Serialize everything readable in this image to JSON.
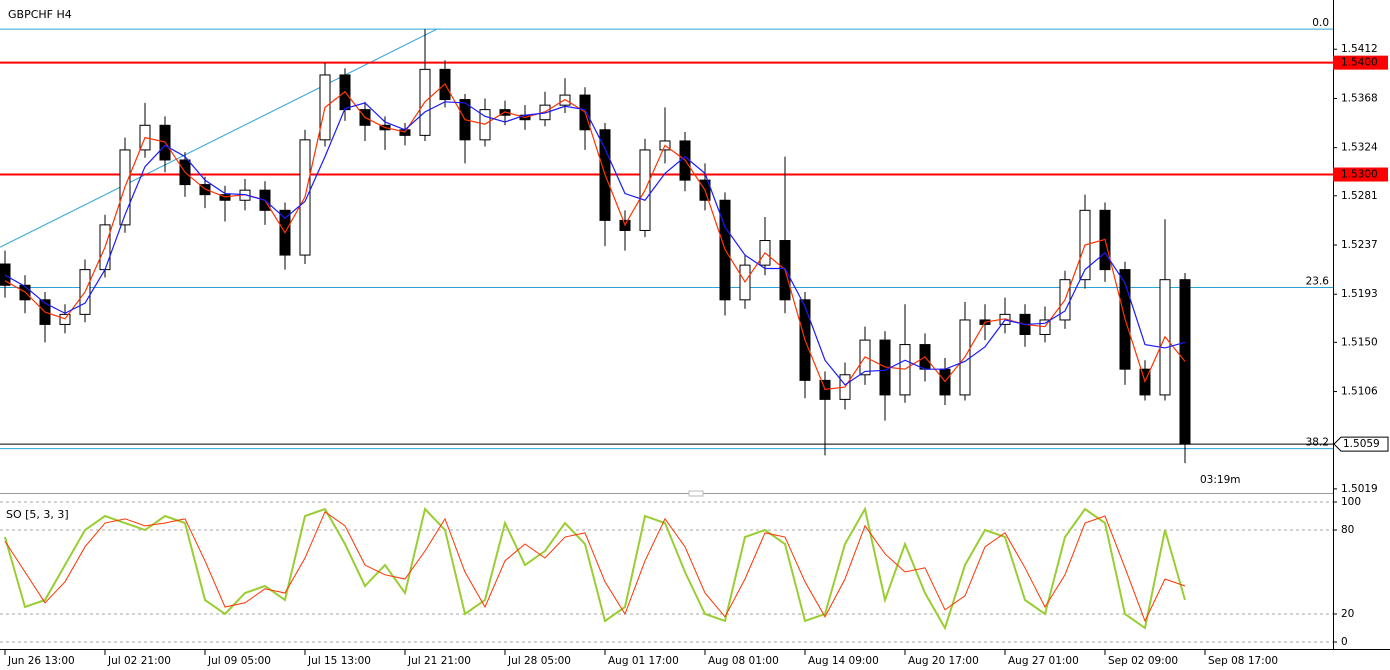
{
  "chart_data": [
    {
      "type": "candlestick",
      "title": "GBPCHF H4",
      "xlim": [
        -0.25,
        66.4
      ],
      "xticks": [
        {
          "value": 0,
          "label": "Jun 26 13:00"
        },
        {
          "value": 5,
          "label": "Jul 02 21:00"
        },
        {
          "value": 10,
          "label": "Jul 09 05:00"
        },
        {
          "value": 15,
          "label": "Jul 15 13:00"
        },
        {
          "value": 20,
          "label": "Jul 21 21:00"
        },
        {
          "value": 25,
          "label": "Jul 28 05:00"
        },
        {
          "value": 30,
          "label": "Aug 01 17:00"
        },
        {
          "value": 35,
          "label": "Aug 08 01:00"
        },
        {
          "value": 40,
          "label": "Aug 14 09:00"
        },
        {
          "value": 45,
          "label": "Aug 20 17:00"
        },
        {
          "value": 50,
          "label": "Aug 27 01:00"
        },
        {
          "value": 55,
          "label": "Sep 02 09:00"
        },
        {
          "value": 60,
          "label": "Sep 08 17:00"
        }
      ],
      "ylim": [
        1.5018,
        1.5456
      ],
      "yticks": [
        1.5412,
        1.5368,
        1.5324,
        1.5281,
        1.5237,
        1.5193,
        {
          "value": 1.515,
          "label": "1.5150"
        },
        1.5106,
        1.5019
      ],
      "up_color": "#ffffff",
      "down_color": "#000000",
      "open": [
        1.522,
        1.5201,
        1.5188,
        1.5166,
        1.5175,
        1.5215,
        1.5255,
        1.5322,
        1.5344,
        1.5313,
        1.5291,
        1.5282,
        1.5277,
        1.5286,
        1.5268,
        1.5228,
        1.5331,
        1.5389,
        1.5358,
        1.5344,
        1.534,
        1.5335,
        1.5394,
        1.5367,
        1.5331,
        1.5358,
        1.5353,
        1.5349,
        1.5362,
        1.5371,
        1.534,
        1.5259,
        1.525,
        1.5322,
        1.533,
        1.5295,
        1.5277,
        1.5188,
        1.5219,
        1.5241,
        1.5188,
        1.5116,
        1.5099,
        1.5121,
        1.5152,
        1.5103,
        1.5148,
        1.5126,
        1.5103,
        1.517,
        1.5166,
        1.5175,
        1.5157,
        1.517,
        1.5206,
        1.5268,
        1.5215,
        1.5126,
        1.5103,
        1.5206
      ],
      "high": [
        1.5232,
        1.521,
        1.5195,
        1.5184,
        1.5224,
        1.5264,
        1.5333,
        1.5364,
        1.5352,
        1.532,
        1.5298,
        1.529,
        1.5296,
        1.5294,
        1.5275,
        1.534,
        1.54,
        1.5395,
        1.5365,
        1.5352,
        1.5346,
        1.543,
        1.5402,
        1.5372,
        1.5368,
        1.5366,
        1.5362,
        1.5374,
        1.5386,
        1.5378,
        1.5346,
        1.5268,
        1.5332,
        1.536,
        1.5338,
        1.531,
        1.5284,
        1.5228,
        1.5262,
        1.5316,
        1.5195,
        1.5124,
        1.5132,
        1.5164,
        1.516,
        1.5184,
        1.5158,
        1.5136,
        1.5186,
        1.5184,
        1.519,
        1.5184,
        1.5182,
        1.5214,
        1.5282,
        1.5275,
        1.5222,
        1.5134,
        1.526,
        1.5212
      ],
      "low": [
        1.519,
        1.5176,
        1.515,
        1.5158,
        1.5168,
        1.5208,
        1.5248,
        1.5315,
        1.5302,
        1.528,
        1.527,
        1.5258,
        1.5268,
        1.5255,
        1.5215,
        1.522,
        1.5325,
        1.5348,
        1.533,
        1.5322,
        1.5326,
        1.533,
        1.536,
        1.531,
        1.5325,
        1.5344,
        1.534,
        1.5343,
        1.5355,
        1.5322,
        1.5236,
        1.5232,
        1.5244,
        1.531,
        1.5285,
        1.5268,
        1.5174,
        1.518,
        1.521,
        1.5176,
        1.51,
        1.5049,
        1.509,
        1.5112,
        1.508,
        1.5096,
        1.5115,
        1.5094,
        1.5098,
        1.5152,
        1.5158,
        1.5146,
        1.515,
        1.5162,
        1.5198,
        1.5204,
        1.5112,
        1.5098,
        1.5098,
        1.5042
      ],
      "close": [
        1.5201,
        1.5188,
        1.5166,
        1.5175,
        1.5215,
        1.5255,
        1.5322,
        1.5344,
        1.5313,
        1.5291,
        1.5282,
        1.5277,
        1.5286,
        1.5268,
        1.5228,
        1.5331,
        1.5389,
        1.5358,
        1.5344,
        1.534,
        1.5335,
        1.5394,
        1.5367,
        1.5331,
        1.5358,
        1.5353,
        1.5349,
        1.5362,
        1.5371,
        1.534,
        1.5259,
        1.525,
        1.5322,
        1.533,
        1.5295,
        1.5277,
        1.5188,
        1.5219,
        1.5241,
        1.5188,
        1.5116,
        1.5099,
        1.5121,
        1.5152,
        1.5103,
        1.5148,
        1.5126,
        1.5103,
        1.517,
        1.5166,
        1.5175,
        1.5157,
        1.517,
        1.5206,
        1.5268,
        1.5215,
        1.5126,
        1.5103,
        1.5206,
        1.5059
      ],
      "series": [
        {
          "color": "#ff3300",
          "values": [
            1.5205,
            1.5195,
            1.5177,
            1.5171,
            1.5195,
            1.5235,
            1.5289,
            1.5333,
            1.5329,
            1.5302,
            1.5287,
            1.528,
            1.5282,
            1.5277,
            1.5248,
            1.528,
            1.536,
            1.5374,
            1.5351,
            1.5342,
            1.5338,
            1.5365,
            1.5381,
            1.5349,
            1.5345,
            1.5356,
            1.5351,
            1.5356,
            1.5367,
            1.5356,
            1.53,
            1.5255,
            1.5286,
            1.5326,
            1.5313,
            1.5286,
            1.5233,
            1.5204,
            1.523,
            1.5215,
            1.5152,
            1.5108,
            1.511,
            1.5137,
            1.5128,
            1.5126,
            1.5137,
            1.5115,
            1.5137,
            1.5168,
            1.5171,
            1.5166,
            1.5164,
            1.5188,
            1.5237,
            1.5242,
            1.5171,
            1.5115,
            1.5155,
            1.5133
          ]
        },
        {
          "color": "#1a1aff",
          "values": [
            1.521,
            1.52,
            1.5185,
            1.5176,
            1.5185,
            1.5215,
            1.5264,
            1.5307,
            1.5326,
            1.5316,
            1.5295,
            1.5283,
            1.5282,
            1.5277,
            1.5261,
            1.5276,
            1.5316,
            1.5359,
            1.5364,
            1.5347,
            1.534,
            1.5356,
            1.5365,
            1.5364,
            1.5352,
            1.5347,
            1.5353,
            1.5355,
            1.5361,
            1.5358,
            1.5323,
            1.5283,
            1.5277,
            1.5301,
            1.5316,
            1.5301,
            1.5253,
            1.5228,
            1.5216,
            1.5216,
            1.5182,
            1.5134,
            1.5112,
            1.5124,
            1.5125,
            1.5134,
            1.5126,
            1.5126,
            1.5133,
            1.5146,
            1.517,
            1.5166,
            1.5167,
            1.5178,
            1.5215,
            1.523,
            1.5203,
            1.5148,
            1.5145,
            1.515
          ]
        }
      ],
      "levels": [
        {
          "value": 1.54,
          "label": "1.5400",
          "color": "#ff0000"
        },
        {
          "value": 1.53,
          "label": "1.5300",
          "color": "#ff0000"
        }
      ],
      "fibonacci": {
        "color": "#29a3d9",
        "levels": [
          {
            "label": "0.0",
            "price": 1.543
          },
          {
            "label": "23.6",
            "price": 1.5199
          },
          {
            "label": "38.2",
            "price": 1.5055
          }
        ]
      },
      "trendline": {
        "color": "#29a3d9",
        "x": [
          -0.25,
          21.6
        ],
        "y": [
          1.5235,
          1.543
        ]
      },
      "current_price": {
        "value": 1.5059,
        "label": "1.5059"
      },
      "countdown": "03:19m"
    },
    {
      "type": "line",
      "title": "SO [5, 3, 3]",
      "ylim": [
        -4.3,
        103.6
      ],
      "yticks": [
        0,
        20,
        80,
        100
      ],
      "series": [
        {
          "color": "#9acd32",
          "values": [
            75,
            25,
            30,
            55,
            80,
            90,
            85,
            80,
            90,
            85,
            30,
            20,
            35,
            40,
            30,
            90,
            95,
            70,
            40,
            55,
            35,
            95,
            80,
            20,
            30,
            85,
            55,
            65,
            85,
            70,
            15,
            25,
            90,
            85,
            50,
            20,
            15,
            75,
            80,
            70,
            15,
            20,
            70,
            95,
            30,
            70,
            35,
            10,
            55,
            80,
            75,
            30,
            20,
            75,
            95,
            85,
            20,
            10,
            80,
            30
          ]
        },
        {
          "color": "#ff3300",
          "values": [
            72,
            50,
            28,
            43,
            68,
            85,
            88,
            83,
            85,
            88,
            58,
            25,
            28,
            38,
            35,
            60,
            93,
            83,
            55,
            48,
            45,
            65,
            88,
            50,
            25,
            58,
            70,
            60,
            75,
            78,
            43,
            20,
            58,
            88,
            68,
            35,
            18,
            45,
            78,
            75,
            43,
            18,
            45,
            83,
            63,
            50,
            53,
            23,
            33,
            68,
            78,
            53,
            25,
            48,
            85,
            90,
            53,
            15,
            45,
            40
          ]
        }
      ]
    }
  ]
}
